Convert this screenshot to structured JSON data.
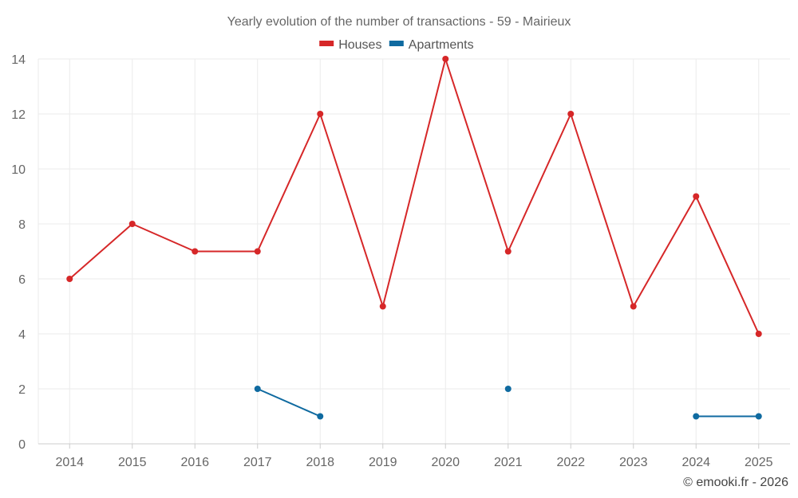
{
  "chart_data": {
    "type": "line",
    "title": "Yearly evolution of the number of transactions - 59 - Mairieux",
    "categories": [
      "2014",
      "2015",
      "2016",
      "2017",
      "2018",
      "2019",
      "2020",
      "2021",
      "2022",
      "2023",
      "2024",
      "2025"
    ],
    "series": [
      {
        "name": "Houses",
        "color": "#d62728",
        "values": [
          6,
          8,
          7,
          7,
          12,
          5,
          14,
          7,
          12,
          5,
          9,
          4
        ]
      },
      {
        "name": "Apartments",
        "color": "#0f6aa0",
        "values": [
          null,
          null,
          null,
          2,
          1,
          null,
          null,
          2,
          null,
          null,
          1,
          1
        ]
      }
    ],
    "ylim": [
      0,
      14
    ],
    "yticks": [
      "0",
      "2",
      "4",
      "6",
      "8",
      "10",
      "12",
      "14"
    ],
    "xlabel": "",
    "ylabel": "",
    "grid": true,
    "legend": "top-center"
  },
  "credit": "© emooki.fr - 2026"
}
